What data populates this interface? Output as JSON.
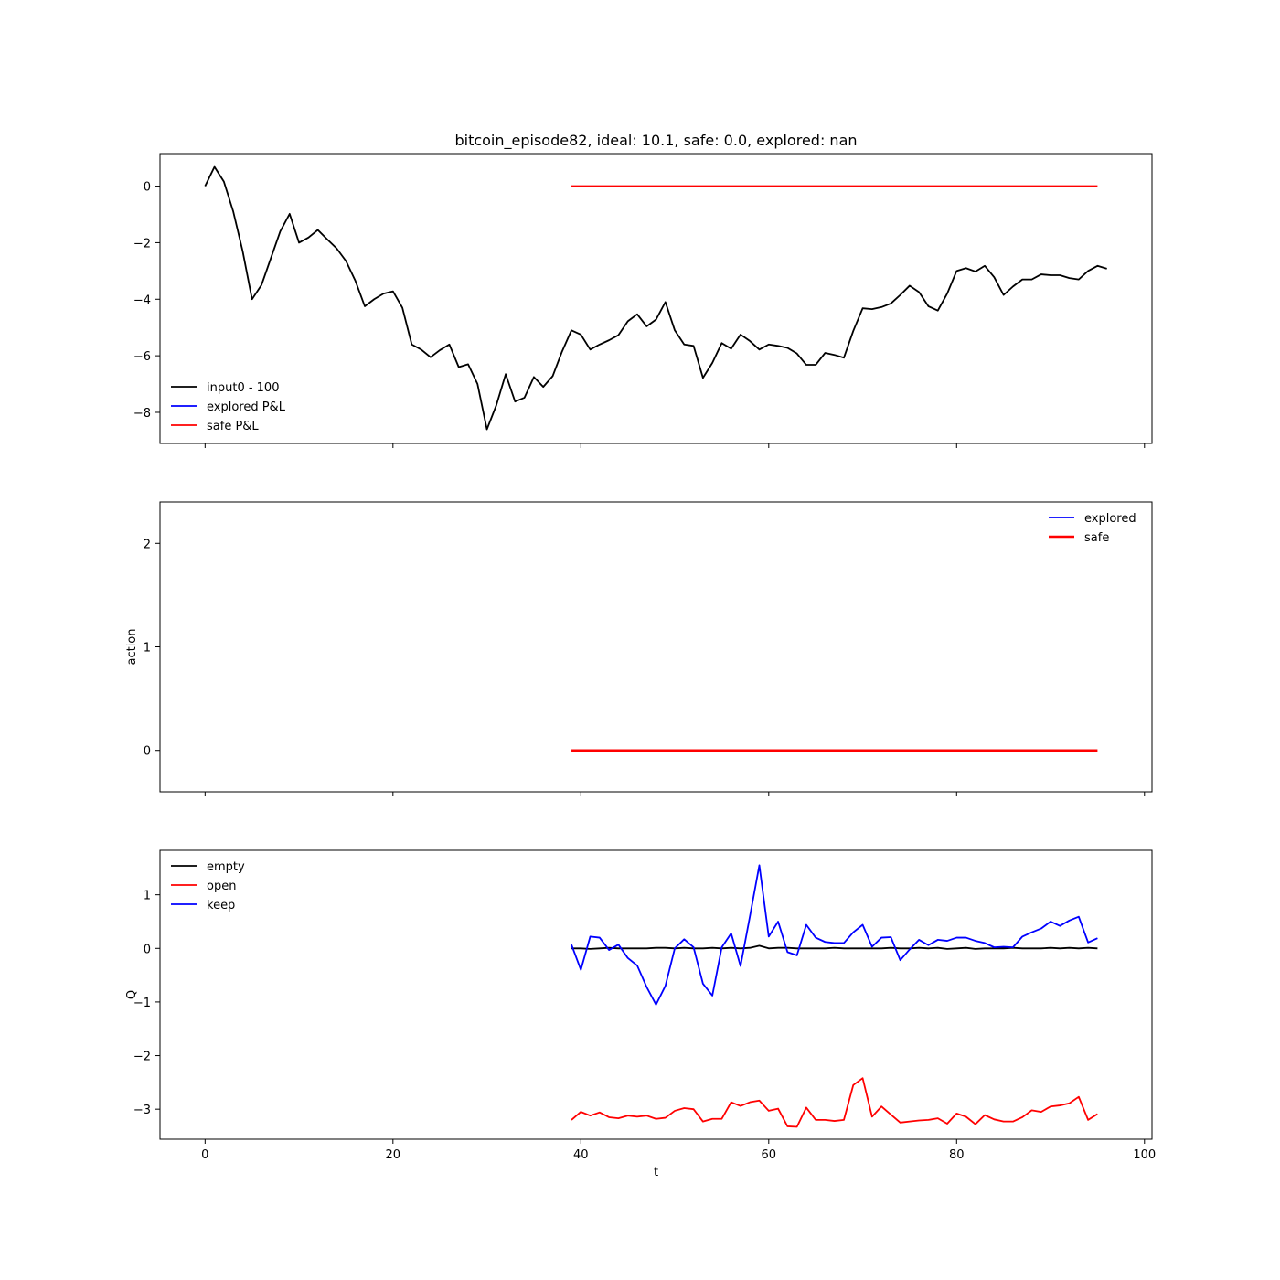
{
  "chart_data": [
    {
      "type": "line",
      "title": "bitcoin_episode82, ideal: 10.1, safe: 0.0, explored: nan",
      "xlabel": "",
      "ylabel": "",
      "xlim": [
        -4.8,
        100.8
      ],
      "ylim": [
        -9.1,
        1.15
      ],
      "xticks": [
        0,
        20,
        40,
        60,
        80,
        100
      ],
      "xtick_labels_visible": false,
      "yticks": [
        0,
        -2,
        -4,
        -6,
        -8
      ],
      "ytick_labels": [
        "0",
        "−2",
        "−4",
        "−6",
        "−8"
      ],
      "grid": false,
      "legend_position": "lower-left",
      "legend": [
        {
          "label": "input0 - 100",
          "color": "#000000"
        },
        {
          "label": "explored P&L",
          "color": "#0000ff"
        },
        {
          "label": "safe P&L",
          "color": "#ff0000"
        }
      ],
      "series": [
        {
          "name": "input0 - 100",
          "color": "#000000",
          "x_start": 0,
          "values": [
            0.0,
            0.68,
            0.16,
            -0.9,
            -2.3,
            -4.0,
            -3.5,
            -2.55,
            -1.6,
            -0.98,
            -2.0,
            -1.82,
            -1.55,
            -1.88,
            -2.2,
            -2.65,
            -3.35,
            -4.25,
            -4.0,
            -3.8,
            -3.72,
            -4.3,
            -5.6,
            -5.78,
            -6.05,
            -5.8,
            -5.6,
            -6.4,
            -6.3,
            -7.0,
            -8.6,
            -7.75,
            -6.65,
            -7.62,
            -7.48,
            -6.75,
            -7.1,
            -6.72,
            -5.85,
            -5.1,
            -5.25,
            -5.78,
            -5.6,
            -5.45,
            -5.27,
            -4.78,
            -4.53,
            -4.96,
            -4.72,
            -4.1,
            -5.1,
            -5.6,
            -5.65,
            -6.78,
            -6.25,
            -5.55,
            -5.75,
            -5.25,
            -5.48,
            -5.78,
            -5.6,
            -5.65,
            -5.72,
            -5.92,
            -6.32,
            -6.32,
            -5.9,
            -5.97,
            -6.07,
            -5.12,
            -4.32,
            -4.35,
            -4.28,
            -4.15,
            -3.85,
            -3.52,
            -3.75,
            -4.25,
            -4.4,
            -3.8,
            -3.0,
            -2.9,
            -3.02,
            -2.82,
            -3.22,
            -3.85,
            -3.55,
            -3.3,
            -3.3,
            -3.12,
            -3.15,
            -3.15,
            -3.25,
            -3.3,
            -3.0,
            -2.82,
            -2.92
          ]
        },
        {
          "name": "safe P&L",
          "color": "#ff0000",
          "x": [
            39,
            95
          ],
          "values": [
            0.0,
            0.0
          ]
        }
      ]
    },
    {
      "type": "line",
      "title": "",
      "xlabel": "",
      "ylabel": "action",
      "xlim": [
        -4.8,
        100.8
      ],
      "ylim": [
        -0.4,
        2.4
      ],
      "xticks": [
        0,
        20,
        40,
        60,
        80,
        100
      ],
      "xtick_labels_visible": false,
      "yticks": [
        0,
        1,
        2
      ],
      "ytick_labels": [
        "0",
        "1",
        "2"
      ],
      "grid": false,
      "legend_position": "upper-right",
      "legend": [
        {
          "label": "explored",
          "color": "#0000ff"
        },
        {
          "label": "safe",
          "color": "#ff0000"
        }
      ],
      "series": [
        {
          "name": "safe",
          "color": "#ff0000",
          "x": [
            39,
            95
          ],
          "values": [
            0,
            0
          ]
        }
      ]
    },
    {
      "type": "line",
      "title": "",
      "xlabel": "t",
      "ylabel": "Q",
      "xlim": [
        -4.8,
        100.8
      ],
      "ylim": [
        -3.56,
        1.83
      ],
      "xticks": [
        0,
        20,
        40,
        60,
        80,
        100
      ],
      "xtick_labels": [
        "0",
        "20",
        "40",
        "60",
        "80",
        "100"
      ],
      "xtick_labels_visible": true,
      "yticks": [
        1,
        0,
        -1,
        -2,
        -3
      ],
      "ytick_labels": [
        "1",
        "0",
        "−1",
        "−2",
        "−3"
      ],
      "grid": false,
      "legend_position": "upper-left",
      "legend": [
        {
          "label": "empty",
          "color": "#000000"
        },
        {
          "label": "open",
          "color": "#ff0000"
        },
        {
          "label": "keep",
          "color": "#0000ff"
        }
      ],
      "series": [
        {
          "name": "empty",
          "color": "#000000",
          "x_start": 39,
          "values": [
            0.0,
            0.0,
            -0.01,
            0.0,
            0.01,
            0.0,
            0.0,
            0.0,
            0.0,
            0.01,
            0.01,
            0.0,
            0.01,
            0.0,
            0.0,
            0.01,
            0.0,
            0.01,
            0.0,
            0.01,
            0.05,
            0.0,
            0.01,
            0.01,
            0.0,
            0.0,
            0.0,
            0.0,
            0.01,
            0.0,
            0.0,
            0.0,
            0.0,
            0.0,
            0.01,
            0.0,
            0.0,
            0.01,
            0.0,
            0.01,
            -0.01,
            0.0,
            0.01,
            -0.01,
            0.0,
            0.0,
            0.0,
            0.01,
            0.0,
            0.0,
            0.0,
            0.01,
            0.0,
            0.01,
            0.0,
            0.01,
            0.0
          ]
        },
        {
          "name": "open",
          "color": "#ff0000",
          "x_start": 39,
          "values": [
            -3.2,
            -3.05,
            -3.12,
            -3.06,
            -3.15,
            -3.17,
            -3.12,
            -3.14,
            -3.12,
            -3.18,
            -3.16,
            -3.03,
            -2.98,
            -3.0,
            -3.23,
            -3.18,
            -3.18,
            -2.87,
            -2.94,
            -2.87,
            -2.84,
            -3.03,
            -2.99,
            -3.32,
            -3.33,
            -2.97,
            -3.2,
            -3.2,
            -3.22,
            -3.2,
            -2.55,
            -2.42,
            -3.14,
            -2.95,
            -3.1,
            -3.25,
            -3.23,
            -3.21,
            -3.2,
            -3.17,
            -3.27,
            -3.08,
            -3.14,
            -3.28,
            -3.11,
            -3.19,
            -3.23,
            -3.23,
            -3.15,
            -3.02,
            -3.05,
            -2.95,
            -2.93,
            -2.89,
            -2.77,
            -3.2,
            -3.09
          ]
        },
        {
          "name": "keep",
          "color": "#0000ff",
          "x_start": 39,
          "values": [
            0.07,
            -0.4,
            0.22,
            0.2,
            -0.03,
            0.07,
            -0.18,
            -0.32,
            -0.72,
            -1.05,
            -0.7,
            0.0,
            0.17,
            0.02,
            -0.66,
            -0.88,
            0.02,
            0.28,
            -0.33,
            0.6,
            1.55,
            0.22,
            0.5,
            -0.07,
            -0.13,
            0.44,
            0.2,
            0.12,
            0.1,
            0.1,
            0.3,
            0.44,
            0.03,
            0.2,
            0.21,
            -0.22,
            -0.02,
            0.16,
            0.06,
            0.16,
            0.14,
            0.2,
            0.2,
            0.14,
            0.1,
            0.02,
            0.03,
            0.02,
            0.22,
            0.3,
            0.37,
            0.5,
            0.42,
            0.52,
            0.59,
            0.11,
            0.19
          ]
        }
      ]
    }
  ]
}
